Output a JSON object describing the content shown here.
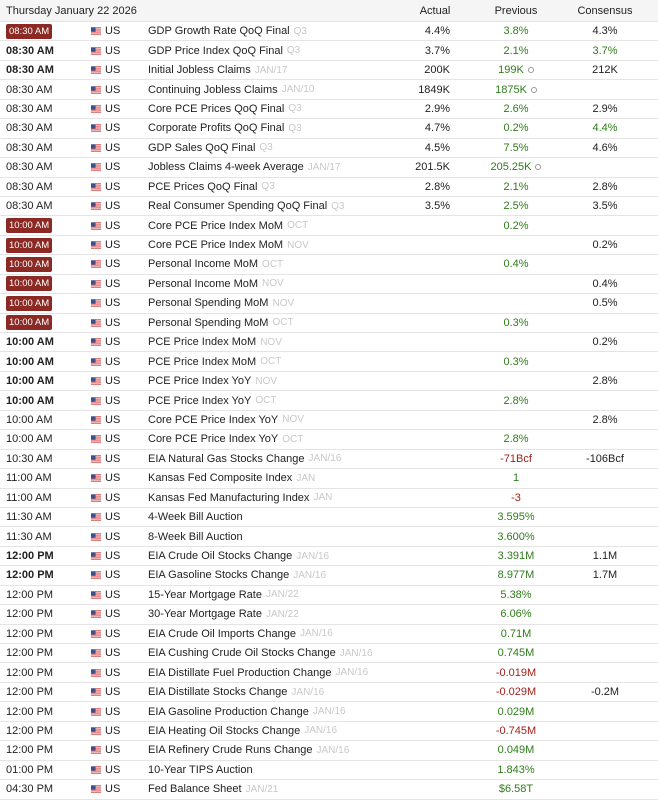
{
  "header": {
    "date": "Thursday January 22 2026",
    "actual": "Actual",
    "previous": "Previous",
    "consensus": "Consensus"
  },
  "rows": [
    {
      "time": "08:30 AM",
      "time_style": "badge",
      "country": "US",
      "event": "GDP Growth Rate QoQ Final",
      "period": "Q3",
      "actual": "4.4%",
      "previous": "3.8%",
      "previous_color": "green",
      "consensus": "4.3%"
    },
    {
      "time": "08:30 AM",
      "time_style": "bold",
      "country": "US",
      "event": "GDP Price Index QoQ Final",
      "period": "Q3",
      "actual": "3.7%",
      "previous": "2.1%",
      "previous_color": "green",
      "consensus": "3.7%",
      "consensus_color": "green"
    },
    {
      "time": "08:30 AM",
      "time_style": "bold",
      "country": "US",
      "event": "Initial Jobless Claims",
      "period": "JAN/17",
      "actual": "200K",
      "previous": "199K",
      "previous_color": "green",
      "revised": true,
      "consensus": "212K"
    },
    {
      "time": "08:30 AM",
      "time_style": "normal",
      "country": "US",
      "event": "Continuing Jobless Claims",
      "period": "JAN/10",
      "actual": "1849K",
      "previous": "1875K",
      "previous_color": "green",
      "revised": true
    },
    {
      "time": "08:30 AM",
      "time_style": "normal",
      "country": "US",
      "event": "Core PCE Prices QoQ Final",
      "period": "Q3",
      "actual": "2.9%",
      "previous": "2.6%",
      "previous_color": "green",
      "consensus": "2.9%"
    },
    {
      "time": "08:30 AM",
      "time_style": "normal",
      "country": "US",
      "event": "Corporate Profits QoQ Final",
      "period": "Q3",
      "actual": "4.7%",
      "previous": "0.2%",
      "previous_color": "green",
      "consensus": "4.4%",
      "consensus_color": "green"
    },
    {
      "time": "08:30 AM",
      "time_style": "normal",
      "country": "US",
      "event": "GDP Sales QoQ Final",
      "period": "Q3",
      "actual": "4.5%",
      "previous": "7.5%",
      "previous_color": "green",
      "consensus": "4.6%"
    },
    {
      "time": "08:30 AM",
      "time_style": "normal",
      "country": "US",
      "event": "Jobless Claims 4-week Average",
      "period": "JAN/17",
      "actual": "201.5K",
      "previous": "205.25K",
      "previous_color": "green",
      "revised": true
    },
    {
      "time": "08:30 AM",
      "time_style": "normal",
      "country": "US",
      "event": "PCE Prices QoQ Final",
      "period": "Q3",
      "actual": "2.8%",
      "previous": "2.1%",
      "previous_color": "green",
      "consensus": "2.8%"
    },
    {
      "time": "08:30 AM",
      "time_style": "normal",
      "country": "US",
      "event": "Real Consumer Spending QoQ Final",
      "period": "Q3",
      "actual": "3.5%",
      "previous": "2.5%",
      "previous_color": "green",
      "consensus": "3.5%"
    },
    {
      "time": "10:00 AM",
      "time_style": "badge",
      "country": "US",
      "event": "Core PCE Price Index MoM",
      "period": "OCT",
      "previous": "0.2%",
      "previous_color": "green"
    },
    {
      "time": "10:00 AM",
      "time_style": "badge",
      "country": "US",
      "event": "Core PCE Price Index MoM",
      "period": "NOV",
      "consensus": "0.2%"
    },
    {
      "time": "10:00 AM",
      "time_style": "badge",
      "country": "US",
      "event": "Personal Income MoM",
      "period": "OCT",
      "previous": "0.4%",
      "previous_color": "green"
    },
    {
      "time": "10:00 AM",
      "time_style": "badge",
      "country": "US",
      "event": "Personal Income MoM",
      "period": "NOV",
      "consensus": "0.4%"
    },
    {
      "time": "10:00 AM",
      "time_style": "badge",
      "country": "US",
      "event": "Personal Spending MoM",
      "period": "NOV",
      "consensus": "0.5%"
    },
    {
      "time": "10:00 AM",
      "time_style": "badge",
      "country": "US",
      "event": "Personal Spending MoM",
      "period": "OCT",
      "previous": "0.3%",
      "previous_color": "green"
    },
    {
      "time": "10:00 AM",
      "time_style": "bold",
      "country": "US",
      "event": "PCE Price Index MoM",
      "period": "NOV",
      "consensus": "0.2%"
    },
    {
      "time": "10:00 AM",
      "time_style": "bold",
      "country": "US",
      "event": "PCE Price Index MoM",
      "period": "OCT",
      "previous": "0.3%",
      "previous_color": "green"
    },
    {
      "time": "10:00 AM",
      "time_style": "bold",
      "country": "US",
      "event": "PCE Price Index YoY",
      "period": "NOV",
      "consensus": "2.8%"
    },
    {
      "time": "10:00 AM",
      "time_style": "bold",
      "country": "US",
      "event": "PCE Price Index YoY",
      "period": "OCT",
      "previous": "2.8%",
      "previous_color": "green"
    },
    {
      "time": "10:00 AM",
      "time_style": "normal",
      "country": "US",
      "event": "Core PCE Price Index YoY",
      "period": "NOV",
      "consensus": "2.8%"
    },
    {
      "time": "10:00 AM",
      "time_style": "normal",
      "country": "US",
      "event": "Core PCE Price Index YoY",
      "period": "OCT",
      "previous": "2.8%",
      "previous_color": "green"
    },
    {
      "time": "10:30 AM",
      "time_style": "normal",
      "country": "US",
      "event": "EIA Natural Gas Stocks Change",
      "period": "JAN/16",
      "previous": "-71Bcf",
      "previous_color": "red",
      "consensus": "-106Bcf"
    },
    {
      "time": "11:00 AM",
      "time_style": "normal",
      "country": "US",
      "event": "Kansas Fed Composite Index",
      "period": "JAN",
      "previous": "1",
      "previous_color": "green"
    },
    {
      "time": "11:00 AM",
      "time_style": "normal",
      "country": "US",
      "event": "Kansas Fed Manufacturing Index",
      "period": "JAN",
      "previous": "-3",
      "previous_color": "red"
    },
    {
      "time": "11:30 AM",
      "time_style": "normal",
      "country": "US",
      "event": "4-Week Bill Auction",
      "previous": "3.595%",
      "previous_color": "green"
    },
    {
      "time": "11:30 AM",
      "time_style": "normal",
      "country": "US",
      "event": "8-Week Bill Auction",
      "previous": "3.600%",
      "previous_color": "green"
    },
    {
      "time": "12:00 PM",
      "time_style": "bold",
      "country": "US",
      "event": "EIA Crude Oil Stocks Change",
      "period": "JAN/16",
      "previous": "3.391M",
      "previous_color": "green",
      "consensus": "1.1M"
    },
    {
      "time": "12:00 PM",
      "time_style": "bold",
      "country": "US",
      "event": "EIA Gasoline Stocks Change",
      "period": "JAN/16",
      "previous": "8.977M",
      "previous_color": "green",
      "consensus": "1.7M"
    },
    {
      "time": "12:00 PM",
      "time_style": "normal",
      "country": "US",
      "event": "15-Year Mortgage Rate",
      "period": "JAN/22",
      "previous": "5.38%",
      "previous_color": "green"
    },
    {
      "time": "12:00 PM",
      "time_style": "normal",
      "country": "US",
      "event": "30-Year Mortgage Rate",
      "period": "JAN/22",
      "previous": "6.06%",
      "previous_color": "green"
    },
    {
      "time": "12:00 PM",
      "time_style": "normal",
      "country": "US",
      "event": "EIA Crude Oil Imports Change",
      "period": "JAN/16",
      "previous": "0.71M",
      "previous_color": "green"
    },
    {
      "time": "12:00 PM",
      "time_style": "normal",
      "country": "US",
      "event": "EIA Cushing Crude Oil Stocks Change",
      "period": "JAN/16",
      "previous": "0.745M",
      "previous_color": "green"
    },
    {
      "time": "12:00 PM",
      "time_style": "normal",
      "country": "US",
      "event": "EIA Distillate Fuel Production Change",
      "period": "JAN/16",
      "previous": "-0.019M",
      "previous_color": "red"
    },
    {
      "time": "12:00 PM",
      "time_style": "normal",
      "country": "US",
      "event": "EIA Distillate Stocks Change",
      "period": "JAN/16",
      "previous": "-0.029M",
      "previous_color": "red",
      "consensus": "-0.2M"
    },
    {
      "time": "12:00 PM",
      "time_style": "normal",
      "country": "US",
      "event": "EIA Gasoline Production Change",
      "period": "JAN/16",
      "previous": "0.029M",
      "previous_color": "green"
    },
    {
      "time": "12:00 PM",
      "time_style": "normal",
      "country": "US",
      "event": "EIA Heating Oil Stocks Change",
      "period": "JAN/16",
      "previous": "-0.745M",
      "previous_color": "red"
    },
    {
      "time": "12:00 PM",
      "time_style": "normal",
      "country": "US",
      "event": "EIA Refinery Crude Runs Change",
      "period": "JAN/16",
      "previous": "0.049M",
      "previous_color": "green"
    },
    {
      "time": "01:00 PM",
      "time_style": "normal",
      "country": "US",
      "event": "10-Year TIPS Auction",
      "previous": "1.843%",
      "previous_color": "green"
    },
    {
      "time": "04:30 PM",
      "time_style": "normal",
      "country": "US",
      "event": "Fed Balance Sheet",
      "period": "JAN/21",
      "previous": "$6.58T",
      "previous_color": "green"
    }
  ]
}
